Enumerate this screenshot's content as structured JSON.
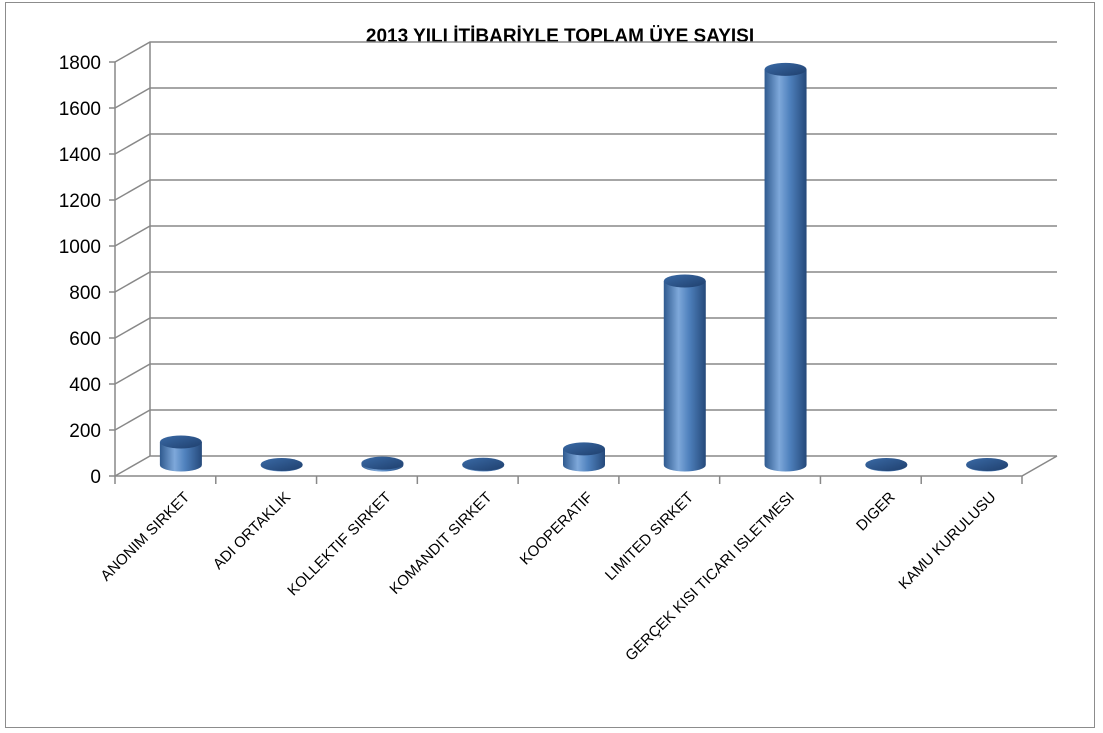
{
  "chart_data": {
    "type": "bar",
    "title": "2013 YILI İTİBARİYLE TOPLAM ÜYE SAYISI",
    "xlabel": "",
    "ylabel": "",
    "ylim": [
      0,
      1800
    ],
    "yticks": [
      0,
      200,
      400,
      600,
      800,
      1000,
      1200,
      1400,
      1600,
      1800
    ],
    "grid": true,
    "legend": "none",
    "bar_color": "#4f81bd",
    "categories": [
      "ANONIM SIRKET",
      "ADI ORTAKLIK",
      "KOLLEKTIF SIRKET",
      "KOMANDIT SIRKET",
      "KOOPERATIF",
      "LIMITED SIRKET",
      "GERÇEK KISI TICARI ISLETMESI",
      "DIGER",
      "KAMU KURULUSU"
    ],
    "values": [
      100,
      2,
      8,
      3,
      70,
      800,
      1720,
      2,
      2
    ]
  }
}
